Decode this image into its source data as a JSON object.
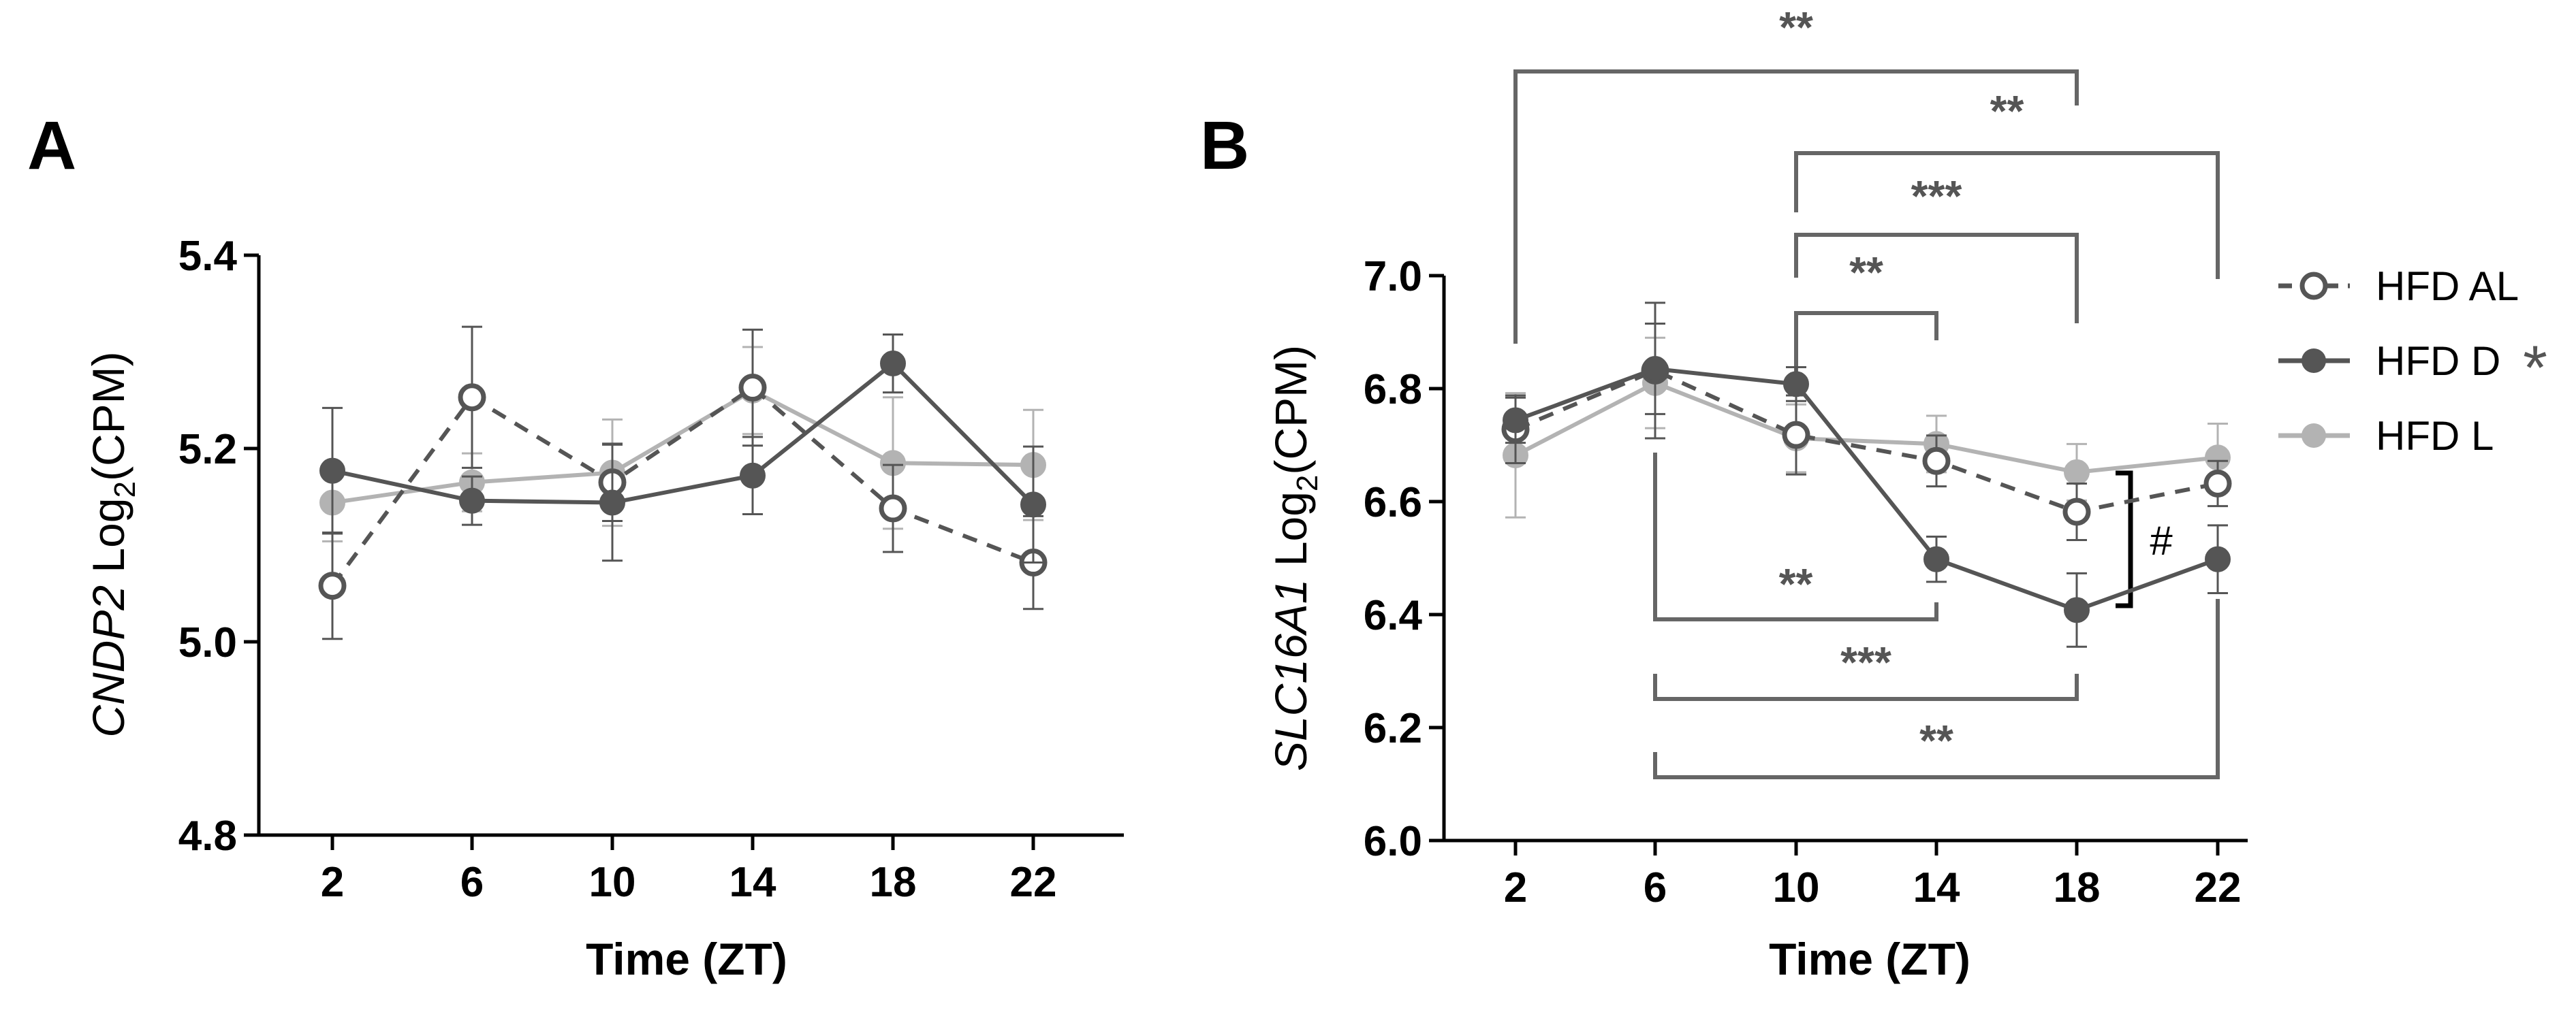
{
  "colors": {
    "hfd_al": "#555555",
    "hfd_d": "#555555",
    "hfd_l": "#b3b3b3",
    "axis": "#000000",
    "bracket": "#666666"
  },
  "legend": {
    "items": [
      {
        "name": "HFD AL",
        "marker": "open-circle-dashed"
      },
      {
        "name": "HFD D",
        "marker": "filled-circle-solid",
        "suffix": "*"
      },
      {
        "name": "HFD L",
        "marker": "light-circle-solid"
      }
    ]
  },
  "chart_data": [
    {
      "panel": "A",
      "type": "line",
      "ylabel_italic": "CNDP2",
      "ylabel_rest": " Log",
      "ylabel_sub": "2",
      "ylabel_tail": "(CPM)",
      "xlabel": "Time (ZT)",
      "categories": [
        "2",
        "6",
        "10",
        "14",
        "18",
        "22"
      ],
      "ylim": [
        4.8,
        5.4
      ],
      "yticks": [
        4.8,
        5.0,
        5.2,
        5.4
      ],
      "ytick_labels": [
        "4.8",
        "5.0",
        "5.2",
        "5.4"
      ],
      "series": [
        {
          "name": "HFD AL",
          "values": [
            5.058,
            5.253,
            5.165,
            5.263,
            5.138,
            5.082
          ],
          "errors": [
            0.055,
            0.073,
            0.04,
            0.06,
            0.045,
            0.048
          ]
        },
        {
          "name": "HFD D",
          "values": [
            5.177,
            5.146,
            5.144,
            5.172,
            5.288,
            5.142
          ],
          "errors": [
            0.065,
            0.025,
            0.06,
            0.04,
            0.03,
            0.06
          ]
        },
        {
          "name": "HFD L",
          "values": [
            5.144,
            5.165,
            5.175,
            5.26,
            5.185,
            5.183
          ],
          "errors": [
            0.04,
            0.03,
            0.055,
            0.045,
            0.068,
            0.057
          ]
        }
      ]
    },
    {
      "panel": "B",
      "type": "line",
      "ylabel_italic": "SLC16A1",
      "ylabel_rest": " Log",
      "ylabel_sub": "2",
      "ylabel_tail": "(CPM)",
      "xlabel": "Time (ZT)",
      "categories": [
        "2",
        "6",
        "10",
        "14",
        "18",
        "22"
      ],
      "ylim": [
        6.0,
        7.0
      ],
      "yticks": [
        6.0,
        6.2,
        6.4,
        6.6,
        6.8,
        7.0
      ],
      "ytick_labels": [
        "6.0",
        "6.2",
        "6.4",
        "6.6",
        "6.8",
        "7.0"
      ],
      "series": [
        {
          "name": "HFD AL",
          "values": [
            6.728,
            6.832,
            6.718,
            6.672,
            6.582,
            6.632
          ],
          "errors": [
            0.06,
            0.12,
            0.07,
            0.045,
            0.05,
            0.04
          ]
        },
        {
          "name": "HFD D",
          "values": [
            6.744,
            6.835,
            6.808,
            6.498,
            6.408,
            6.498
          ],
          "errors": [
            0.04,
            0.08,
            0.03,
            0.04,
            0.065,
            0.06
          ]
        },
        {
          "name": "HFD L",
          "values": [
            6.682,
            6.81,
            6.712,
            6.702,
            6.652,
            6.678
          ],
          "errors": [
            0.11,
            0.08,
            0.06,
            0.05,
            0.05,
            0.06
          ]
        }
      ],
      "significance_above": [
        {
          "from": "2",
          "to": "18",
          "label": "**"
        },
        {
          "from": "10",
          "to": "22",
          "label": "**"
        },
        {
          "from": "10",
          "to": "18",
          "label": "***"
        },
        {
          "from": "10",
          "to": "14",
          "label": "**"
        }
      ],
      "significance_below": [
        {
          "from": "6",
          "to": "14",
          "label": "**"
        },
        {
          "from": "6",
          "to": "18",
          "label": "***"
        },
        {
          "from": "6",
          "to": "22",
          "label": "**"
        }
      ],
      "hash_annotation": {
        "at": "18",
        "label": "#"
      }
    }
  ]
}
